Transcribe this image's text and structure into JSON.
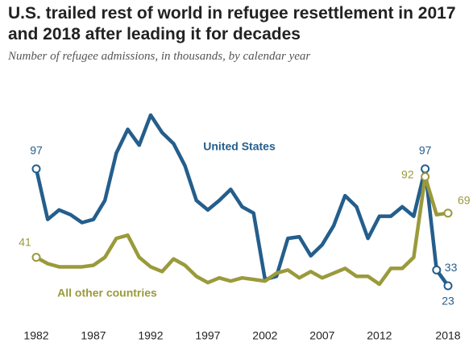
{
  "chart_data": {
    "type": "line",
    "title": "U.S. trailed rest of world in refugee resettlement in 2017 and 2018 after leading it for decades",
    "subtitle": "Number of refugee admissions, in thousands, by calendar year",
    "x": [
      1982,
      1983,
      1984,
      1985,
      1986,
      1987,
      1988,
      1989,
      1990,
      1991,
      1992,
      1993,
      1994,
      1995,
      1996,
      1997,
      1998,
      1999,
      2000,
      2001,
      2002,
      2003,
      2004,
      2005,
      2006,
      2007,
      2008,
      2009,
      2010,
      2011,
      2012,
      2013,
      2014,
      2015,
      2016,
      2017,
      2018
    ],
    "xticks": [
      1982,
      1987,
      1992,
      1997,
      2002,
      2007,
      2012,
      2018
    ],
    "series": [
      {
        "name": "United States",
        "color": "#245e8c",
        "values": [
          97,
          65,
          71,
          68,
          63,
          65,
          77,
          107,
          122,
          112,
          131,
          120,
          113,
          99,
          77,
          71,
          77,
          84,
          73,
          69,
          27,
          29,
          53,
          54,
          42,
          49,
          61,
          80,
          73,
          53,
          67,
          67,
          73,
          67,
          97,
          33,
          23
        ]
      },
      {
        "name": "All other countries",
        "color": "#9a9a3c",
        "values": [
          41,
          37,
          35,
          35,
          35,
          36,
          41,
          53,
          55,
          41,
          35,
          32,
          40,
          36,
          29,
          25,
          28,
          26,
          28,
          27,
          26,
          31,
          33,
          28,
          32,
          28,
          31,
          34,
          29,
          29,
          24,
          34,
          34,
          41,
          92,
          68,
          69
        ]
      }
    ]
  }
}
